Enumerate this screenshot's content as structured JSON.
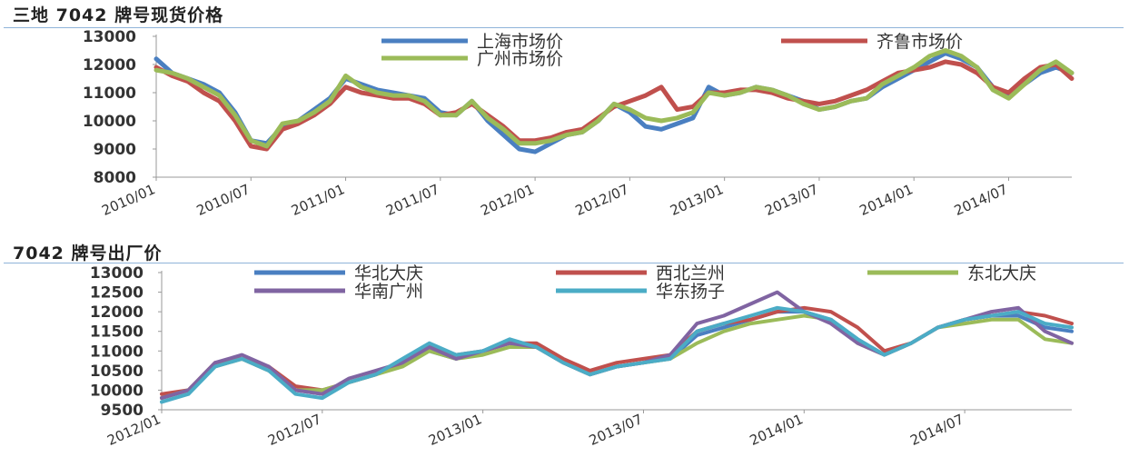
{
  "chart_data": [
    {
      "type": "line",
      "title": "三地 7042 牌号现货价格",
      "xlabel": "",
      "ylabel": "",
      "ylim": [
        8000,
        13000
      ],
      "yticks": [
        "13000",
        "12000",
        "11000",
        "10000",
        "9000",
        "8000"
      ],
      "xticks": [
        "2010/01",
        "2010/07",
        "2011/01",
        "2011/07",
        "2012/01",
        "2012/07",
        "2013/01",
        "2013/07",
        "2014/01",
        "2014/07"
      ],
      "x_range": [
        "2010/01",
        "2014/11"
      ],
      "grid": false,
      "legend_position": "top",
      "x": [
        "2010/01",
        "2010/02",
        "2010/03",
        "2010/04",
        "2010/05",
        "2010/06",
        "2010/07",
        "2010/08",
        "2010/09",
        "2010/10",
        "2010/11",
        "2010/12",
        "2011/01",
        "2011/02",
        "2011/03",
        "2011/04",
        "2011/05",
        "2011/06",
        "2011/07",
        "2011/08",
        "2011/09",
        "2011/10",
        "2011/11",
        "2011/12",
        "2012/01",
        "2012/02",
        "2012/03",
        "2012/04",
        "2012/05",
        "2012/06",
        "2012/07",
        "2012/08",
        "2012/09",
        "2012/10",
        "2012/11",
        "2012/12",
        "2013/01",
        "2013/02",
        "2013/03",
        "2013/04",
        "2013/05",
        "2013/06",
        "2013/07",
        "2013/08",
        "2013/09",
        "2013/10",
        "2013/11",
        "2013/12",
        "2014/01",
        "2014/02",
        "2014/03",
        "2014/04",
        "2014/05",
        "2014/06",
        "2014/07",
        "2014/08",
        "2014/09",
        "2014/10",
        "2014/11"
      ],
      "series": [
        {
          "name": "上海市场价",
          "color": "#4a7fc1",
          "values": [
            12200,
            11700,
            11500,
            11300,
            11000,
            10300,
            9300,
            9200,
            9800,
            10000,
            10400,
            10800,
            11500,
            11300,
            11100,
            11000,
            10900,
            10800,
            10300,
            10200,
            10700,
            10000,
            9500,
            9000,
            8900,
            9200,
            9500,
            9600,
            10000,
            10600,
            10300,
            9800,
            9700,
            9900,
            10100,
            11200,
            10900,
            11000,
            11200,
            11100,
            10900,
            10700,
            10400,
            10500,
            10700,
            10800,
            11200,
            11500,
            11800,
            12100,
            12400,
            12200,
            11900,
            11200,
            10900,
            11300,
            11700,
            11900,
            11700
          ]
        },
        {
          "name": "齐鲁市场价",
          "color": "#c0504d",
          "values": [
            11900,
            11600,
            11400,
            11000,
            10700,
            10000,
            9100,
            9000,
            9700,
            9900,
            10200,
            10600,
            11200,
            11000,
            10900,
            10800,
            10800,
            10600,
            10200,
            10300,
            10600,
            10200,
            9800,
            9300,
            9300,
            9400,
            9600,
            9700,
            10100,
            10500,
            10700,
            10900,
            11200,
            10400,
            10500,
            11000,
            11000,
            11100,
            11100,
            11000,
            10800,
            10700,
            10600,
            10700,
            10900,
            11100,
            11400,
            11700,
            11800,
            11900,
            12100,
            12000,
            11700,
            11200,
            11000,
            11500,
            11900,
            12000,
            11500
          ]
        },
        {
          "name": "广州市场价",
          "color": "#9bbb59",
          "values": [
            11800,
            11700,
            11500,
            11200,
            10900,
            10200,
            9300,
            9100,
            9900,
            10000,
            10300,
            10700,
            11600,
            11200,
            11000,
            10900,
            10900,
            10700,
            10200,
            10200,
            10700,
            10100,
            9700,
            9200,
            9200,
            9300,
            9500,
            9600,
            10000,
            10600,
            10400,
            10100,
            10000,
            10100,
            10300,
            11000,
            10900,
            11000,
            11200,
            11100,
            10900,
            10600,
            10400,
            10500,
            10700,
            10800,
            11300,
            11600,
            11900,
            12300,
            12500,
            12300,
            11900,
            11100,
            10800,
            11300,
            11800,
            12100,
            11700
          ]
        }
      ]
    },
    {
      "type": "line",
      "title": "7042 牌号出厂价",
      "xlabel": "",
      "ylabel": "",
      "ylim": [
        9500,
        13000
      ],
      "yticks": [
        "13000",
        "12500",
        "12000",
        "11500",
        "11000",
        "10500",
        "10000",
        "9500"
      ],
      "xticks": [
        "2012/01",
        "2012/07",
        "2013/01",
        "2013/07",
        "2014/01",
        "2014/07"
      ],
      "x_range": [
        "2012/01",
        "2014/11"
      ],
      "grid": false,
      "legend_position": "top",
      "x": [
        "2012/01",
        "2012/02",
        "2012/03",
        "2012/04",
        "2012/05",
        "2012/06",
        "2012/07",
        "2012/08",
        "2012/09",
        "2012/10",
        "2012/11",
        "2012/12",
        "2013/01",
        "2013/02",
        "2013/03",
        "2013/04",
        "2013/05",
        "2013/06",
        "2013/07",
        "2013/08",
        "2013/09",
        "2013/10",
        "2013/11",
        "2013/12",
        "2014/01",
        "2014/02",
        "2014/03",
        "2014/04",
        "2014/05",
        "2014/06",
        "2014/07",
        "2014/08",
        "2014/09",
        "2014/10",
        "2014/11"
      ],
      "series": [
        {
          "name": "华北大庆",
          "color": "#4a7fc1",
          "values": [
            9800,
            10000,
            10700,
            10800,
            10500,
            10000,
            9900,
            10200,
            10400,
            10700,
            11000,
            10800,
            11000,
            11200,
            11100,
            10700,
            10400,
            10600,
            10700,
            10800,
            11400,
            11600,
            11800,
            12000,
            12000,
            11800,
            11300,
            10900,
            11200,
            11600,
            11800,
            11900,
            11900,
            11600,
            11500
          ]
        },
        {
          "name": "西北兰州",
          "color": "#c0504d",
          "values": [
            9900,
            10000,
            10700,
            10800,
            10600,
            10100,
            10000,
            10200,
            10400,
            10700,
            11100,
            10900,
            11000,
            11200,
            11200,
            10800,
            10500,
            10700,
            10800,
            10900,
            11500,
            11700,
            11800,
            12000,
            12100,
            12000,
            11600,
            11000,
            11200,
            11600,
            11800,
            11900,
            12000,
            11900,
            11700
          ]
        },
        {
          "name": "东北大庆",
          "color": "#9bbb59",
          "values": [
            9800,
            10000,
            10600,
            10800,
            10500,
            10000,
            10000,
            10200,
            10400,
            10600,
            11000,
            10800,
            10900,
            11100,
            11100,
            10700,
            10400,
            10600,
            10700,
            10800,
            11200,
            11500,
            11700,
            11800,
            11900,
            11800,
            11200,
            10900,
            11200,
            11600,
            11700,
            11800,
            11800,
            11300,
            11200
          ]
        },
        {
          "name": "华南广州",
          "color": "#8064a2",
          "values": [
            9800,
            10000,
            10700,
            10900,
            10600,
            10000,
            9900,
            10300,
            10500,
            10700,
            11100,
            10800,
            11000,
            11200,
            11100,
            10700,
            10400,
            10600,
            10700,
            10900,
            11700,
            11900,
            12200,
            12500,
            12000,
            11700,
            11200,
            10900,
            11200,
            11600,
            11800,
            12000,
            12100,
            11500,
            11200
          ]
        },
        {
          "name": "华东扬子",
          "color": "#4bacc6",
          "values": [
            9700,
            9900,
            10600,
            10800,
            10500,
            9900,
            9800,
            10200,
            10400,
            10800,
            11200,
            10900,
            11000,
            11300,
            11100,
            10700,
            10400,
            10600,
            10700,
            10800,
            11500,
            11700,
            11900,
            12100,
            12000,
            11800,
            11300,
            10900,
            11200,
            11600,
            11800,
            11900,
            12000,
            11700,
            11600
          ]
        }
      ]
    }
  ]
}
